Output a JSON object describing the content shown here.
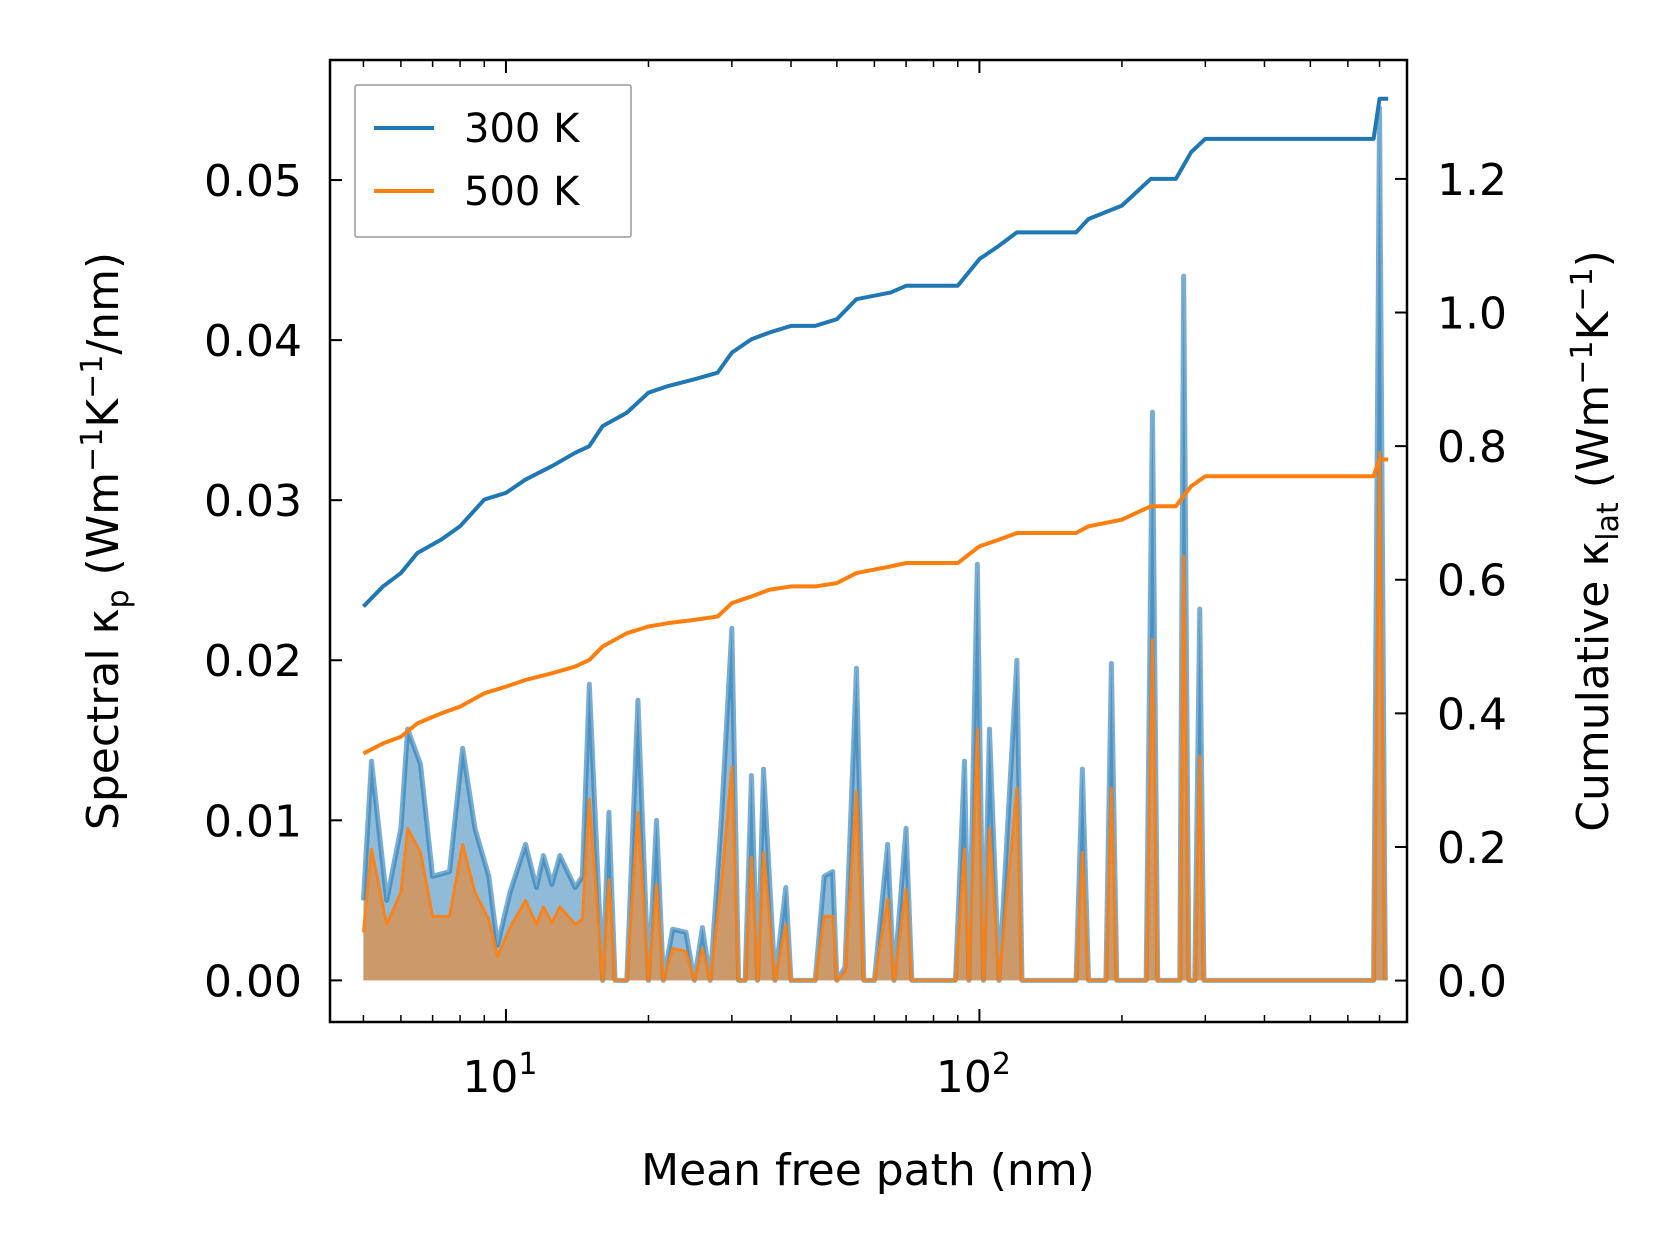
{
  "chart_data": {
    "type": "line+area",
    "xlabel": "Mean free path (nm)",
    "ylabel_left": {
      "prefix": "Spectral κ",
      "sub": "p",
      "units": " (Wm",
      "sup1": "−1",
      "mid": "K",
      "sup2": "−1",
      "end": "/nm)"
    },
    "ylabel_right": {
      "prefix": "Cumulative κ",
      "sub": "lat",
      "units": " (Wm",
      "sup1": "−1",
      "mid": "K",
      "sup2": "−1",
      "end": ")"
    },
    "xscale": "log",
    "xlim": [
      4.25,
      800
    ],
    "ylim_left": [
      -0.0026,
      0.0575
    ],
    "ylim_right": [
      -0.062,
      1.378
    ],
    "xticks": [
      {
        "value": 10,
        "base": "10",
        "exp": "1"
      },
      {
        "value": 100,
        "base": "10",
        "exp": "2"
      }
    ],
    "yticks_left": [
      "0.00",
      "0.01",
      "0.02",
      "0.03",
      "0.04",
      "0.05"
    ],
    "yticks_right": [
      "0.0",
      "0.2",
      "0.4",
      "0.6",
      "0.8",
      "1.0",
      "1.2"
    ],
    "legend_position": "upper-left",
    "series": [
      {
        "name": "300 K",
        "color": "#1f77b4",
        "cumulative": [
          [
            5,
            0.56
          ],
          [
            5.5,
            0.59
          ],
          [
            6,
            0.61
          ],
          [
            6.5,
            0.64
          ],
          [
            7.3,
            0.66
          ],
          [
            8,
            0.68
          ],
          [
            9,
            0.72
          ],
          [
            10,
            0.73
          ],
          [
            11,
            0.75
          ],
          [
            12.5,
            0.77
          ],
          [
            14,
            0.79
          ],
          [
            15,
            0.8
          ],
          [
            16,
            0.83
          ],
          [
            18,
            0.85
          ],
          [
            20,
            0.88
          ],
          [
            22,
            0.89
          ],
          [
            25,
            0.9
          ],
          [
            28,
            0.91
          ],
          [
            30,
            0.94
          ],
          [
            33,
            0.96
          ],
          [
            36,
            0.97
          ],
          [
            40,
            0.98
          ],
          [
            45,
            0.98
          ],
          [
            50,
            0.99
          ],
          [
            55,
            1.02
          ],
          [
            65,
            1.03
          ],
          [
            70,
            1.04
          ],
          [
            90,
            1.04
          ],
          [
            100,
            1.08
          ],
          [
            110,
            1.1
          ],
          [
            120,
            1.12
          ],
          [
            160,
            1.12
          ],
          [
            170,
            1.14
          ],
          [
            200,
            1.16
          ],
          [
            230,
            1.2
          ],
          [
            260,
            1.2
          ],
          [
            280,
            1.24
          ],
          [
            300,
            1.26
          ],
          [
            680,
            1.26
          ],
          [
            700,
            1.32
          ],
          [
            730,
            1.32
          ]
        ],
        "spectral": [
          [
            5,
            0.005
          ],
          [
            5.2,
            0.0137
          ],
          [
            5.6,
            0.005
          ],
          [
            6,
            0.0095
          ],
          [
            6.2,
            0.0157
          ],
          [
            6.6,
            0.0135
          ],
          [
            7,
            0.0065
          ],
          [
            7.6,
            0.0068
          ],
          [
            8.1,
            0.0145
          ],
          [
            8.6,
            0.0095
          ],
          [
            9.2,
            0.0065
          ],
          [
            9.6,
            0.0022
          ],
          [
            10.2,
            0.0055
          ],
          [
            11,
            0.0085
          ],
          [
            11.6,
            0.0058
          ],
          [
            12,
            0.0078
          ],
          [
            12.5,
            0.006
          ],
          [
            13,
            0.0078
          ],
          [
            14,
            0.0058
          ],
          [
            14.5,
            0.0065
          ],
          [
            15,
            0.0185
          ],
          [
            16,
            0
          ],
          [
            16.5,
            0.0105
          ],
          [
            17,
            0
          ],
          [
            18,
            0
          ],
          [
            19,
            0.0175
          ],
          [
            20,
            0
          ],
          [
            20.8,
            0.01
          ],
          [
            21.5,
            0
          ],
          [
            22.5,
            0.0032
          ],
          [
            24,
            0.003
          ],
          [
            25,
            0
          ],
          [
            26,
            0.0033
          ],
          [
            27,
            0
          ],
          [
            28.5,
            0.01
          ],
          [
            30,
            0.022
          ],
          [
            31,
            0
          ],
          [
            32,
            0
          ],
          [
            33,
            0.0128
          ],
          [
            34,
            0
          ],
          [
            35,
            0.0132
          ],
          [
            37,
            0
          ],
          [
            39,
            0.0058
          ],
          [
            40,
            0
          ],
          [
            45,
            0
          ],
          [
            47,
            0.0065
          ],
          [
            49,
            0.0068
          ],
          [
            50,
            0
          ],
          [
            52,
            0.0008
          ],
          [
            55,
            0.0195
          ],
          [
            57,
            0
          ],
          [
            60,
            0
          ],
          [
            64,
            0.0085
          ],
          [
            66,
            0
          ],
          [
            70,
            0.0095
          ],
          [
            72,
            0
          ],
          [
            89,
            0
          ],
          [
            93,
            0.0137
          ],
          [
            95,
            0
          ],
          [
            99,
            0.026
          ],
          [
            102,
            0
          ],
          [
            105,
            0.0157
          ],
          [
            110,
            0
          ],
          [
            120,
            0.02
          ],
          [
            123,
            0
          ],
          [
            160,
            0
          ],
          [
            165,
            0.0132
          ],
          [
            170,
            0
          ],
          [
            185,
            0
          ],
          [
            190,
            0.0198
          ],
          [
            195,
            0
          ],
          [
            225,
            0
          ],
          [
            232,
            0.0355
          ],
          [
            238,
            0
          ],
          [
            265,
            0
          ],
          [
            270,
            0.044
          ],
          [
            277,
            0
          ],
          [
            285,
            0
          ],
          [
            292,
            0.0232
          ],
          [
            298,
            0
          ],
          [
            680,
            0
          ],
          [
            700,
            0.0545
          ],
          [
            720,
            0
          ]
        ]
      },
      {
        "name": "500 K",
        "color": "#ff7f0e",
        "cumulative": [
          [
            5,
            0.34
          ],
          [
            5.5,
            0.355
          ],
          [
            6,
            0.365
          ],
          [
            6.5,
            0.385
          ],
          [
            7.3,
            0.4
          ],
          [
            8,
            0.41
          ],
          [
            9,
            0.43
          ],
          [
            10,
            0.44
          ],
          [
            11,
            0.45
          ],
          [
            12.5,
            0.46
          ],
          [
            14,
            0.47
          ],
          [
            15,
            0.48
          ],
          [
            16,
            0.5
          ],
          [
            18,
            0.52
          ],
          [
            20,
            0.53
          ],
          [
            22,
            0.535
          ],
          [
            25,
            0.54
          ],
          [
            28,
            0.545
          ],
          [
            30,
            0.565
          ],
          [
            33,
            0.575
          ],
          [
            36,
            0.585
          ],
          [
            40,
            0.59
          ],
          [
            45,
            0.59
          ],
          [
            50,
            0.595
          ],
          [
            55,
            0.61
          ],
          [
            65,
            0.62
          ],
          [
            70,
            0.625
          ],
          [
            90,
            0.625
          ],
          [
            100,
            0.65
          ],
          [
            110,
            0.66
          ],
          [
            120,
            0.67
          ],
          [
            160,
            0.67
          ],
          [
            170,
            0.68
          ],
          [
            200,
            0.69
          ],
          [
            230,
            0.71
          ],
          [
            260,
            0.71
          ],
          [
            280,
            0.74
          ],
          [
            300,
            0.755
          ],
          [
            680,
            0.755
          ],
          [
            700,
            0.78
          ],
          [
            730,
            0.78
          ]
        ],
        "spectral": [
          [
            5,
            0.003
          ],
          [
            5.2,
            0.0082
          ],
          [
            5.6,
            0.0035
          ],
          [
            6,
            0.0055
          ],
          [
            6.2,
            0.0095
          ],
          [
            6.6,
            0.008
          ],
          [
            7,
            0.004
          ],
          [
            7.6,
            0.004
          ],
          [
            8.1,
            0.0085
          ],
          [
            8.6,
            0.0055
          ],
          [
            9.2,
            0.0038
          ],
          [
            9.6,
            0.0015
          ],
          [
            10.2,
            0.0033
          ],
          [
            11,
            0.005
          ],
          [
            11.6,
            0.0035
          ],
          [
            12,
            0.0046
          ],
          [
            12.5,
            0.0036
          ],
          [
            13,
            0.0046
          ],
          [
            14,
            0.0035
          ],
          [
            14.5,
            0.0038
          ],
          [
            15,
            0.0113
          ],
          [
            16,
            0
          ],
          [
            16.5,
            0.0063
          ],
          [
            17,
            0
          ],
          [
            18,
            0
          ],
          [
            19,
            0.0105
          ],
          [
            20,
            0
          ],
          [
            20.8,
            0.006
          ],
          [
            21.5,
            0
          ],
          [
            22.5,
            0.002
          ],
          [
            24,
            0.0018
          ],
          [
            25,
            0
          ],
          [
            26,
            0.002
          ],
          [
            27,
            0
          ],
          [
            28.5,
            0.006
          ],
          [
            30,
            0.0133
          ],
          [
            31,
            0
          ],
          [
            32,
            0
          ],
          [
            33,
            0.0077
          ],
          [
            34,
            0
          ],
          [
            35,
            0.008
          ],
          [
            37,
            0
          ],
          [
            39,
            0.0035
          ],
          [
            40,
            0
          ],
          [
            45,
            0
          ],
          [
            47,
            0.004
          ],
          [
            49,
            0.004
          ],
          [
            50,
            0
          ],
          [
            52,
            0.0005
          ],
          [
            55,
            0.0118
          ],
          [
            57,
            0
          ],
          [
            60,
            0
          ],
          [
            64,
            0.0051
          ],
          [
            66,
            0
          ],
          [
            70,
            0.0057
          ],
          [
            72,
            0
          ],
          [
            89,
            0
          ],
          [
            93,
            0.0082
          ],
          [
            95,
            0
          ],
          [
            99,
            0.0157
          ],
          [
            102,
            0
          ],
          [
            105,
            0.0095
          ],
          [
            110,
            0
          ],
          [
            120,
            0.012
          ],
          [
            123,
            0
          ],
          [
            160,
            0
          ],
          [
            165,
            0.008
          ],
          [
            170,
            0
          ],
          [
            185,
            0
          ],
          [
            190,
            0.012
          ],
          [
            195,
            0
          ],
          [
            225,
            0
          ],
          [
            232,
            0.0213
          ],
          [
            238,
            0
          ],
          [
            265,
            0
          ],
          [
            270,
            0.0265
          ],
          [
            277,
            0
          ],
          [
            285,
            0
          ],
          [
            292,
            0.014
          ],
          [
            298,
            0
          ],
          [
            680,
            0
          ],
          [
            700,
            0.033
          ],
          [
            720,
            0
          ]
        ]
      }
    ]
  }
}
